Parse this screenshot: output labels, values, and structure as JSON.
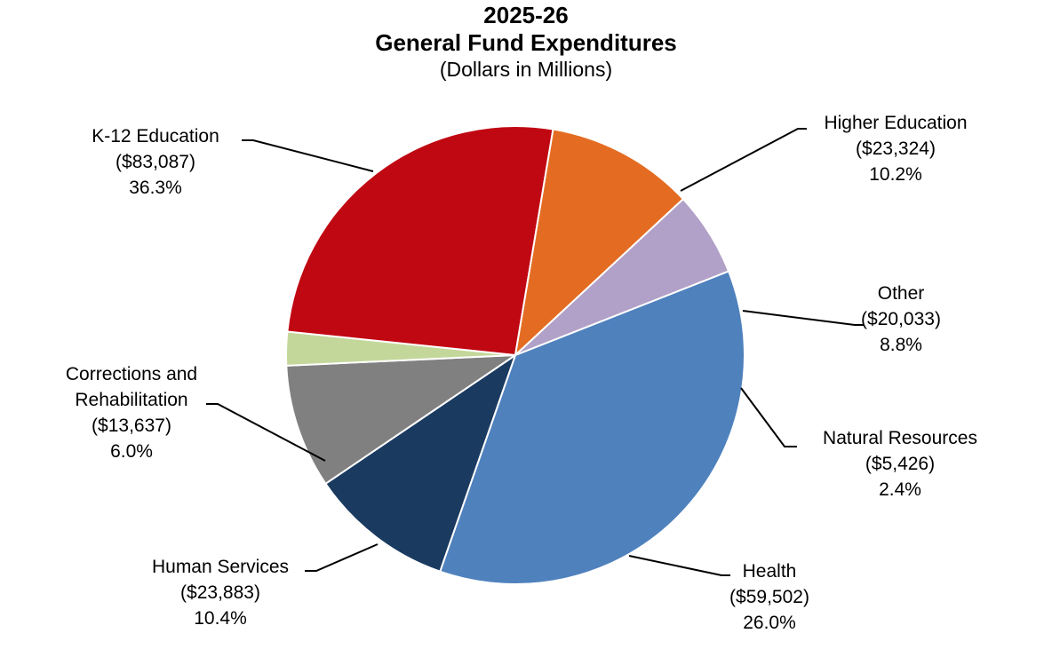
{
  "chart_data": {
    "type": "pie",
    "title": "2025-26",
    "title2": "General Fund Expenditures",
    "subtitle": "(Dollars in Millions)",
    "slices": [
      {
        "name": "K-12 Education",
        "name_lines": [
          "K-12 Education"
        ],
        "value": 83087,
        "value_label": "($83,087)",
        "percent": 36.3,
        "percent_label": "36.3%",
        "color": "#4f81bd"
      },
      {
        "name": "Higher Education",
        "name_lines": [
          "Higher Education"
        ],
        "value": 23324,
        "value_label": "($23,324)",
        "percent": 10.2,
        "percent_label": "10.2%",
        "color": "#1a3a60"
      },
      {
        "name": "Other",
        "name_lines": [
          "Other"
        ],
        "value": 20033,
        "value_label": "($20,033)",
        "percent": 8.8,
        "percent_label": "8.8%",
        "color": "#808080"
      },
      {
        "name": "Natural Resources",
        "name_lines": [
          "Natural Resources"
        ],
        "value": 5426,
        "value_label": "($5,426)",
        "percent": 2.4,
        "percent_label": "2.4%",
        "color": "#c4d79b"
      },
      {
        "name": "Health",
        "name_lines": [
          "Health"
        ],
        "value": 59502,
        "value_label": "($59,502)",
        "percent": 26.0,
        "percent_label": "26.0%",
        "color": "#c00812"
      },
      {
        "name": "Human Services",
        "name_lines": [
          "Human Services"
        ],
        "value": 23883,
        "value_label": "($23,883)",
        "percent": 10.4,
        "percent_label": "10.4%",
        "color": "#e36c22"
      },
      {
        "name": "Corrections and Rehabilitation",
        "name_lines": [
          "Corrections and",
          "Rehabilitation"
        ],
        "value": 13637,
        "value_label": "($13,637)",
        "percent": 6.0,
        "percent_label": "6.0%",
        "color": "#b1a0c7"
      }
    ]
  }
}
